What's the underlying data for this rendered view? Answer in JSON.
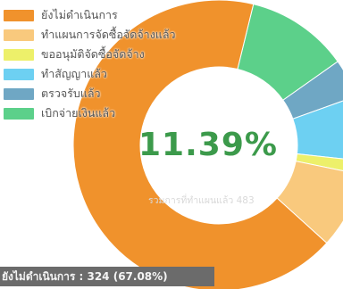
{
  "chart_data": {
    "type": "pie",
    "style": "donut",
    "title": "",
    "center_value": "11.39%",
    "center_subtitle": "รวมการที่ทำแผนแล้ว 483",
    "tooltip": "ยังไม่ดำเนินการ : 324 (67.08%)",
    "legend_position": "top-left",
    "categories": [
      "ยังไม่ดำเนินการ",
      "ทำแผนการจัดซื้อจัดจ้างแล้ว",
      "ขออนุมัติจัดซื้อจัดจ้าง",
      "ทำสัญญาแล้ว",
      "ตรวจรับแล้ว",
      "เบิกจ่ายเงินแล้ว"
    ],
    "values": [
      67.08,
      8.5,
      1.5,
      7.2,
      4.3,
      11.39
    ],
    "colors": [
      "#f0922c",
      "#f9c97d",
      "#edf06a",
      "#6dd0f2",
      "#6fa7c4",
      "#5cd08a"
    ]
  }
}
